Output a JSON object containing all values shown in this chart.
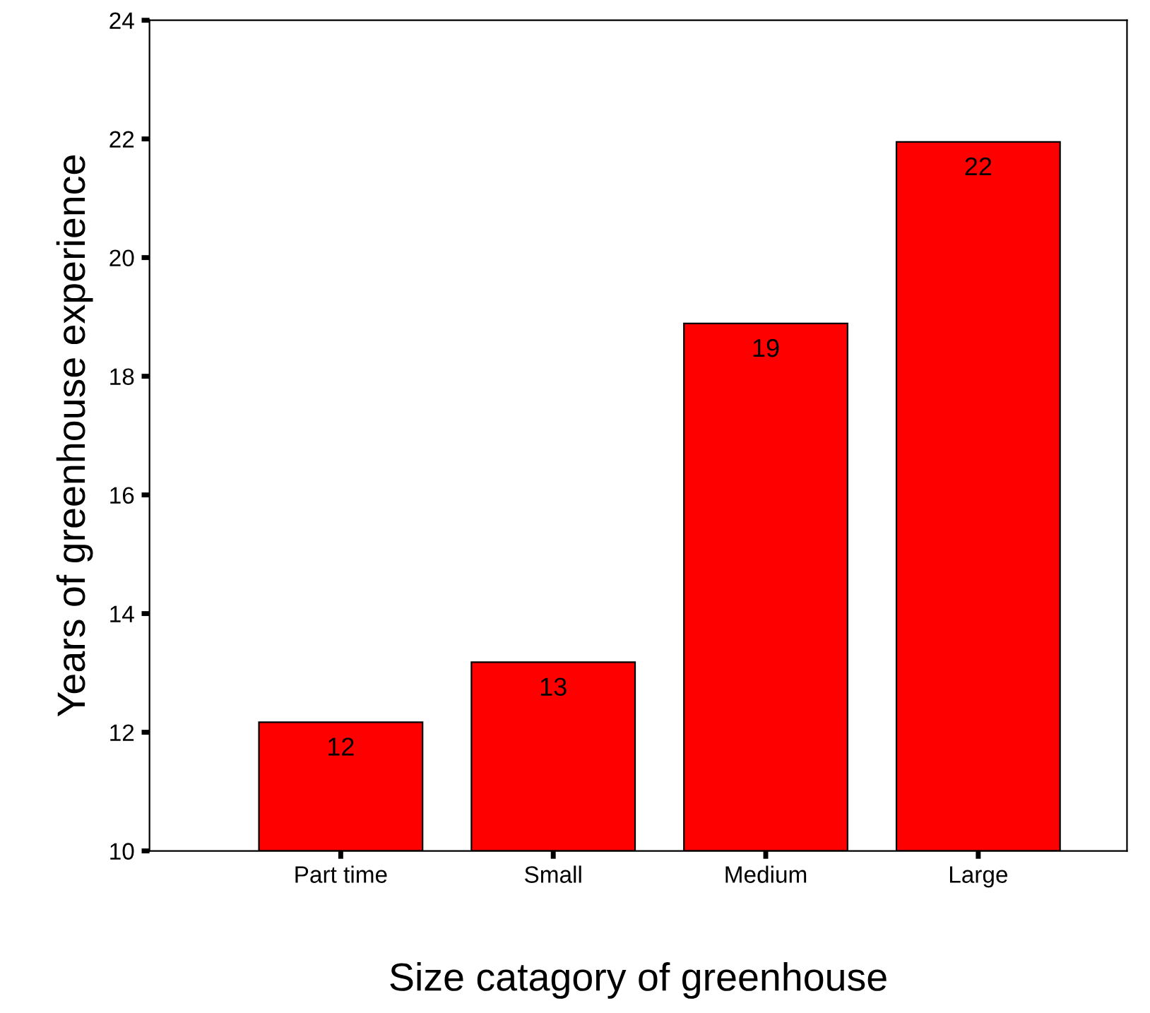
{
  "chart_data": {
    "type": "bar",
    "xlabel": "Size catagory of greenhouse",
    "ylabel": "Years of greenhouse experience",
    "categories": [
      "Part time",
      "Small",
      "Medium",
      "Large"
    ],
    "values": [
      12.17,
      13.18,
      18.89,
      21.95
    ],
    "value_labels": [
      "12",
      "13",
      "19",
      "22"
    ],
    "color": "#ff0000",
    "ylim": [
      10,
      24
    ],
    "yticks": [
      10,
      12,
      14,
      16,
      18,
      20,
      22,
      24
    ],
    "grid": false,
    "legend": false
  }
}
